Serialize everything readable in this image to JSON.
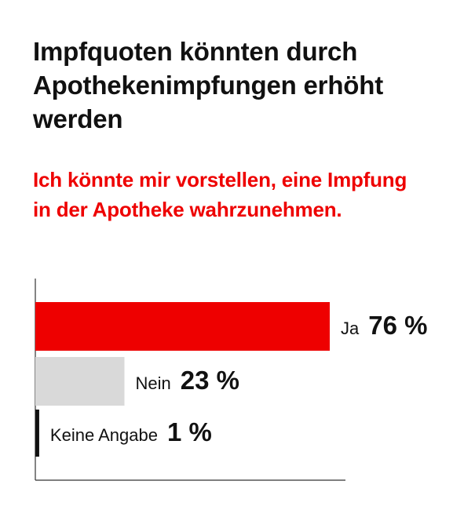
{
  "title": "Impfquoten könnten durch Apothekenimpfungen erhöht werden",
  "subtitle": "Ich könnte mir vorstellen, eine Impfung in der Apotheke wahrzunehmen.",
  "colors": {
    "title": "#111111",
    "subtitle": "#ee0000",
    "axis": "#333333"
  },
  "chart_data": {
    "type": "bar",
    "orientation": "horizontal",
    "unit": "%",
    "xlim": [
      0,
      100
    ],
    "grid": false,
    "categories": [
      "Ja",
      "Nein",
      "Keine Angabe"
    ],
    "values": [
      76,
      23,
      1
    ],
    "value_labels": [
      "76 %",
      "23 %",
      "1 %"
    ],
    "bar_colors": [
      "#ee0000",
      "#d9d9d9",
      "#111111"
    ]
  }
}
